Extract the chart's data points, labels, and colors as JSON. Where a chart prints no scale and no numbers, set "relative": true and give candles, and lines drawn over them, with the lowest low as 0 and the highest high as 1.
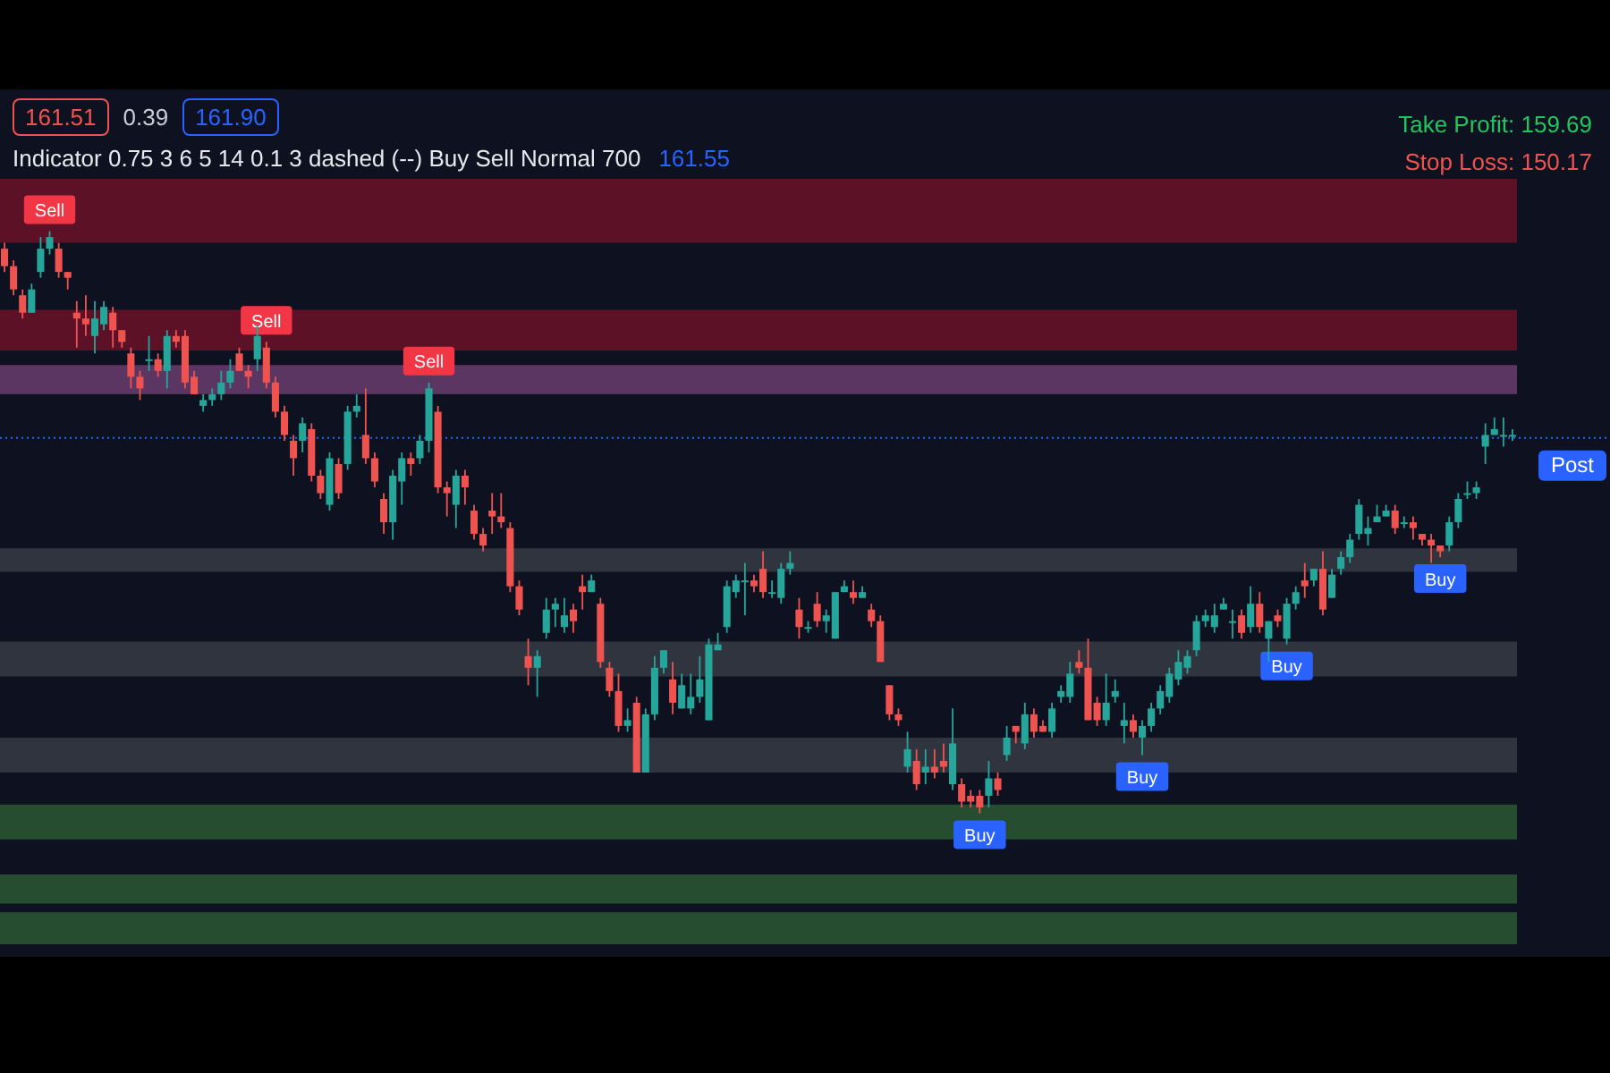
{
  "chart_data": {
    "type": "candlestick",
    "relative": true,
    "title": "Indicator 0.75 3 6 5 14 0.1 3 dashed (--) Buy Sell Normal 700",
    "annotations": [
      "161.51",
      "0.39",
      "161.90",
      "161.55",
      "Take Profit: 159.69",
      "Stop Loss: 150.17",
      {
        "text": "Sell",
        "y": 1.0
      },
      {
        "text": "Sell",
        "y": 0.81
      },
      {
        "text": "Sell",
        "y": 0.74
      },
      {
        "text": "Buy",
        "y": 0
      },
      {
        "text": "Buy",
        "y": 0.1
      },
      {
        "text": "Buy",
        "y": 0.29
      },
      {
        "text": "Buy",
        "y": 0.44
      }
    ],
    "categories": [
      null,
      null,
      null,
      null,
      null,
      null,
      null,
      null,
      null,
      null,
      null,
      null,
      null,
      null,
      null,
      null,
      null,
      null,
      null,
      null,
      null,
      null,
      null,
      null,
      null,
      null,
      null,
      null,
      null,
      null,
      null,
      null,
      null,
      null,
      null,
      null,
      null,
      null,
      null,
      null,
      null,
      null,
      null,
      null,
      null,
      null,
      null,
      null,
      null,
      null,
      null,
      null,
      null,
      null,
      null,
      null,
      null,
      null,
      null,
      null,
      null,
      null,
      null,
      null,
      null,
      null,
      null,
      null,
      null,
      null,
      null,
      null,
      null,
      null,
      null,
      null,
      null,
      null,
      null,
      null,
      null,
      null,
      null,
      null,
      null,
      null,
      null,
      null,
      null,
      null,
      null,
      null,
      null,
      null,
      null,
      null,
      null,
      null,
      null,
      null,
      null,
      null,
      null,
      null,
      null,
      null,
      null,
      null,
      null,
      null,
      null,
      null,
      null,
      null,
      null,
      null,
      null,
      null,
      null,
      null,
      null,
      null,
      null,
      null,
      null,
      null,
      null,
      null,
      null,
      null,
      null,
      null,
      null,
      null,
      null,
      null,
      null,
      null,
      null,
      null,
      null,
      null,
      null,
      null,
      null,
      null,
      null,
      null,
      null,
      null,
      null,
      null,
      null,
      null,
      null,
      null,
      null,
      null,
      null,
      null,
      null,
      null,
      null,
      null,
      null,
      null,
      null,
      null
    ],
    "ohlc": [
      [
        0.97,
        0.98,
        0.93,
        0.94
      ],
      [
        0.94,
        0.95,
        0.89,
        0.9
      ],
      [
        0.89,
        0.9,
        0.85,
        0.86
      ],
      [
        0.86,
        0.91,
        0.86,
        0.9
      ],
      [
        0.93,
        0.99,
        0.92,
        0.97
      ],
      [
        0.97,
        1.0,
        0.96,
        0.99
      ],
      [
        0.97,
        0.98,
        0.92,
        0.93
      ],
      [
        0.93,
        0.93,
        0.9,
        0.92
      ],
      [
        0.86,
        0.88,
        0.8,
        0.85
      ],
      [
        0.85,
        0.89,
        0.82,
        0.84
      ],
      [
        0.82,
        0.88,
        0.79,
        0.85
      ],
      [
        0.84,
        0.88,
        0.83,
        0.87
      ],
      [
        0.86,
        0.87,
        0.8,
        0.83
      ],
      [
        0.83,
        0.83,
        0.8,
        0.81
      ],
      [
        0.79,
        0.8,
        0.73,
        0.75
      ],
      [
        0.75,
        0.76,
        0.71,
        0.73
      ],
      [
        0.78,
        0.82,
        0.76,
        0.78
      ],
      [
        0.78,
        0.79,
        0.75,
        0.76
      ],
      [
        0.76,
        0.83,
        0.73,
        0.82
      ],
      [
        0.82,
        0.83,
        0.8,
        0.81
      ],
      [
        0.82,
        0.83,
        0.73,
        0.74
      ],
      [
        0.75,
        0.76,
        0.72,
        0.72
      ],
      [
        0.7,
        0.72,
        0.69,
        0.71
      ],
      [
        0.71,
        0.73,
        0.7,
        0.72
      ],
      [
        0.72,
        0.76,
        0.71,
        0.74
      ],
      [
        0.74,
        0.78,
        0.73,
        0.76
      ],
      [
        0.79,
        0.8,
        0.76,
        0.76
      ],
      [
        0.76,
        0.77,
        0.73,
        0.75
      ],
      [
        0.78,
        0.84,
        0.76,
        0.82
      ],
      [
        0.8,
        0.81,
        0.73,
        0.74
      ],
      [
        0.74,
        0.75,
        0.68,
        0.69
      ],
      [
        0.69,
        0.7,
        0.64,
        0.65
      ],
      [
        0.64,
        0.65,
        0.58,
        0.61
      ],
      [
        0.64,
        0.68,
        0.62,
        0.67
      ],
      [
        0.66,
        0.67,
        0.57,
        0.58
      ],
      [
        0.58,
        0.59,
        0.54,
        0.55
      ],
      [
        0.53,
        0.62,
        0.52,
        0.61
      ],
      [
        0.6,
        0.61,
        0.54,
        0.55
      ],
      [
        0.6,
        0.7,
        0.59,
        0.69
      ],
      [
        0.69,
        0.72,
        0.68,
        0.7
      ],
      [
        0.65,
        0.73,
        0.6,
        0.61
      ],
      [
        0.61,
        0.62,
        0.56,
        0.57
      ],
      [
        0.54,
        0.55,
        0.48,
        0.5
      ],
      [
        0.5,
        0.59,
        0.47,
        0.58
      ],
      [
        0.57,
        0.62,
        0.53,
        0.61
      ],
      [
        0.61,
        0.62,
        0.58,
        0.6
      ],
      [
        0.61,
        0.65,
        0.6,
        0.64
      ],
      [
        0.64,
        0.74,
        0.62,
        0.73
      ],
      [
        0.69,
        0.7,
        0.55,
        0.56
      ],
      [
        0.56,
        0.57,
        0.51,
        0.55
      ],
      [
        0.53,
        0.59,
        0.49,
        0.58
      ],
      [
        0.58,
        0.59,
        0.53,
        0.56
      ],
      [
        0.52,
        0.53,
        0.47,
        0.48
      ],
      [
        0.48,
        0.49,
        0.45,
        0.46
      ],
      [
        0.52,
        0.55,
        0.48,
        0.51
      ],
      [
        0.51,
        0.55,
        0.49,
        0.5
      ],
      [
        0.49,
        0.5,
        0.38,
        0.39
      ],
      [
        0.39,
        0.4,
        0.34,
        0.35
      ],
      [
        0.27,
        0.3,
        0.22,
        0.25
      ],
      [
        0.25,
        0.28,
        0.2,
        0.27
      ],
      [
        0.31,
        0.37,
        0.3,
        0.35
      ],
      [
        0.35,
        0.37,
        0.32,
        0.36
      ],
      [
        0.32,
        0.37,
        0.31,
        0.34
      ],
      [
        0.35,
        0.36,
        0.31,
        0.33
      ],
      [
        0.39,
        0.41,
        0.35,
        0.38
      ],
      [
        0.38,
        0.41,
        0.38,
        0.4
      ],
      [
        0.36,
        0.37,
        0.25,
        0.26
      ],
      [
        0.25,
        0.26,
        0.2,
        0.21
      ],
      [
        0.21,
        0.24,
        0.14,
        0.15
      ],
      [
        0.15,
        0.18,
        0.14,
        0.16
      ],
      [
        0.19,
        0.2,
        0.07,
        0.07
      ],
      [
        0.07,
        0.18,
        0.07,
        0.17
      ],
      [
        0.17,
        0.27,
        0.16,
        0.25
      ],
      [
        0.25,
        0.28,
        0.24,
        0.28
      ],
      [
        0.23,
        0.26,
        0.17,
        0.19
      ],
      [
        0.18,
        0.24,
        0.18,
        0.22
      ],
      [
        0.18,
        0.24,
        0.17,
        0.2
      ],
      [
        0.2,
        0.27,
        0.19,
        0.23
      ],
      [
        0.16,
        0.3,
        0.16,
        0.29
      ],
      [
        0.28,
        0.31,
        0.28,
        0.29
      ],
      [
        0.32,
        0.4,
        0.31,
        0.39
      ],
      [
        0.38,
        0.41,
        0.37,
        0.4
      ],
      [
        0.4,
        0.43,
        0.34,
        0.4
      ],
      [
        0.4,
        0.41,
        0.38,
        0.39
      ],
      [
        0.42,
        0.45,
        0.37,
        0.38
      ],
      [
        0.38,
        0.4,
        0.37,
        0.38
      ],
      [
        0.37,
        0.43,
        0.36,
        0.42
      ],
      [
        0.42,
        0.45,
        0.41,
        0.43
      ],
      [
        0.35,
        0.37,
        0.3,
        0.32
      ],
      [
        0.32,
        0.33,
        0.31,
        0.32
      ],
      [
        0.36,
        0.38,
        0.32,
        0.33
      ],
      [
        0.33,
        0.35,
        0.31,
        0.34
      ],
      [
        0.3,
        0.38,
        0.3,
        0.38
      ],
      [
        0.38,
        0.4,
        0.38,
        0.39
      ],
      [
        0.38,
        0.4,
        0.36,
        0.37
      ],
      [
        0.37,
        0.39,
        0.37,
        0.38
      ],
      [
        0.35,
        0.36,
        0.32,
        0.33
      ],
      [
        0.33,
        0.34,
        0.26,
        0.26
      ],
      [
        0.22,
        0.22,
        0.16,
        0.17
      ],
      [
        0.17,
        0.18,
        0.15,
        0.16
      ],
      [
        0.08,
        0.14,
        0.07,
        0.11
      ],
      [
        0.09,
        0.11,
        0.04,
        0.05
      ],
      [
        0.07,
        0.11,
        0.05,
        0.08
      ],
      [
        0.08,
        0.11,
        0.06,
        0.07
      ],
      [
        0.09,
        0.12,
        0.07,
        0.08
      ],
      [
        0.05,
        0.18,
        0.04,
        0.12
      ],
      [
        0.05,
        0.06,
        0.01,
        0.02
      ],
      [
        0.03,
        0.04,
        0.01,
        0.02
      ],
      [
        0.03,
        0.04,
        0,
        0.01
      ],
      [
        0.03,
        0.09,
        0.01,
        0.06
      ],
      [
        0.06,
        0.07,
        0.03,
        0.04
      ],
      [
        0.1,
        0.15,
        0.09,
        0.13
      ],
      [
        0.15,
        0.15,
        0.12,
        0.14
      ],
      [
        0.12,
        0.19,
        0.11,
        0.17
      ],
      [
        0.17,
        0.18,
        0.13,
        0.14
      ],
      [
        0.15,
        0.16,
        0.14,
        0.14
      ],
      [
        0.14,
        0.19,
        0.13,
        0.18
      ],
      [
        0.2,
        0.22,
        0.19,
        0.21
      ],
      [
        0.2,
        0.26,
        0.19,
        0.24
      ],
      [
        0.26,
        0.28,
        0.24,
        0.25
      ],
      [
        0.25,
        0.3,
        0.16,
        0.16
      ],
      [
        0.19,
        0.2,
        0.15,
        0.16
      ],
      [
        0.16,
        0.24,
        0.15,
        0.19
      ],
      [
        0.2,
        0.23,
        0.19,
        0.21
      ],
      [
        0.15,
        0.19,
        0.12,
        0.16
      ],
      [
        0.16,
        0.17,
        0.13,
        0.14
      ],
      [
        0.13,
        0.16,
        0.1,
        0.15
      ],
      [
        0.15,
        0.19,
        0.14,
        0.18
      ],
      [
        0.18,
        0.22,
        0.17,
        0.21
      ],
      [
        0.2,
        0.25,
        0.19,
        0.24
      ],
      [
        0.23,
        0.28,
        0.22,
        0.26
      ],
      [
        0.25,
        0.28,
        0.24,
        0.27
      ],
      [
        0.28,
        0.34,
        0.27,
        0.33
      ],
      [
        0.33,
        0.35,
        0.32,
        0.34
      ],
      [
        0.32,
        0.36,
        0.31,
        0.34
      ],
      [
        0.35,
        0.37,
        0.35,
        0.36
      ],
      [
        0.33,
        0.35,
        0.3,
        0.33
      ],
      [
        0.34,
        0.35,
        0.3,
        0.31
      ],
      [
        0.32,
        0.39,
        0.31,
        0.36
      ],
      [
        0.36,
        0.38,
        0.31,
        0.32
      ],
      [
        0.3,
        0.33,
        0.26,
        0.33
      ],
      [
        0.34,
        0.35,
        0.32,
        0.33
      ],
      [
        0.3,
        0.37,
        0.29,
        0.36
      ],
      [
        0.36,
        0.39,
        0.35,
        0.38
      ],
      [
        0.4,
        0.43,
        0.37,
        0.39
      ],
      [
        0.4,
        0.42,
        0.39,
        0.42
      ],
      [
        0.42,
        0.45,
        0.34,
        0.35
      ],
      [
        0.37,
        0.42,
        0.37,
        0.41
      ],
      [
        0.42,
        0.45,
        0.41,
        0.44
      ],
      [
        0.44,
        0.48,
        0.43,
        0.47
      ],
      [
        0.48,
        0.54,
        0.47,
        0.53
      ],
      [
        0.48,
        0.51,
        0.46,
        0.49
      ],
      [
        0.5,
        0.53,
        0.5,
        0.51
      ],
      [
        0.51,
        0.53,
        0.51,
        0.52
      ],
      [
        0.52,
        0.53,
        0.48,
        0.49
      ],
      [
        0.5,
        0.51,
        0.49,
        0.5
      ],
      [
        0.5,
        0.51,
        0.47,
        0.49
      ],
      [
        0.48,
        0.48,
        0.46,
        0.47
      ],
      [
        0.47,
        0.48,
        0.43,
        0.46
      ],
      [
        0.46,
        0.46,
        0.44,
        0.45
      ],
      [
        0.46,
        0.51,
        0.45,
        0.5
      ],
      [
        0.5,
        0.55,
        0.49,
        0.54
      ],
      [
        0.55,
        0.57,
        0.54,
        0.55
      ],
      [
        0.55,
        0.57,
        0.54,
        0.56
      ],
      [
        0.63,
        0.67,
        0.6,
        0.65
      ],
      [
        0.65,
        0.68,
        0.65,
        0.66
      ],
      [
        0.65,
        0.68,
        0.63,
        0.65
      ],
      [
        0.65,
        0.66,
        0.64,
        0.65
      ]
    ],
    "bands": [
      {
        "axis": "y",
        "from": 0.98,
        "to": 1.09,
        "color": "#6b1229"
      },
      {
        "axis": "y",
        "from": 0.795,
        "to": 0.865,
        "color": "#6b1229"
      },
      {
        "axis": "y",
        "from": 0.72,
        "to": 0.77,
        "color": "#6a3d6e"
      },
      {
        "axis": "y",
        "from": 0.415,
        "to": 0.455,
        "color": "#363b44"
      },
      {
        "axis": "y",
        "from": 0.235,
        "to": 0.295,
        "color": "#363b44"
      },
      {
        "axis": "y",
        "from": 0.07,
        "to": 0.13,
        "color": "#363b44"
      },
      {
        "axis": "y",
        "from": -0.045,
        "to": 0.015,
        "color": "#2b5834"
      },
      {
        "axis": "y",
        "from": -0.155,
        "to": -0.105,
        "color": "#2b5834"
      },
      {
        "axis": "y",
        "from": -0.225,
        "to": -0.17,
        "color": "#2b5834"
      }
    ],
    "ref_lines": [
      {
        "axis": "y",
        "value": 0.645,
        "label": "Post",
        "color": "#2962ff",
        "line_style": "dotted"
      }
    ]
  }
}
